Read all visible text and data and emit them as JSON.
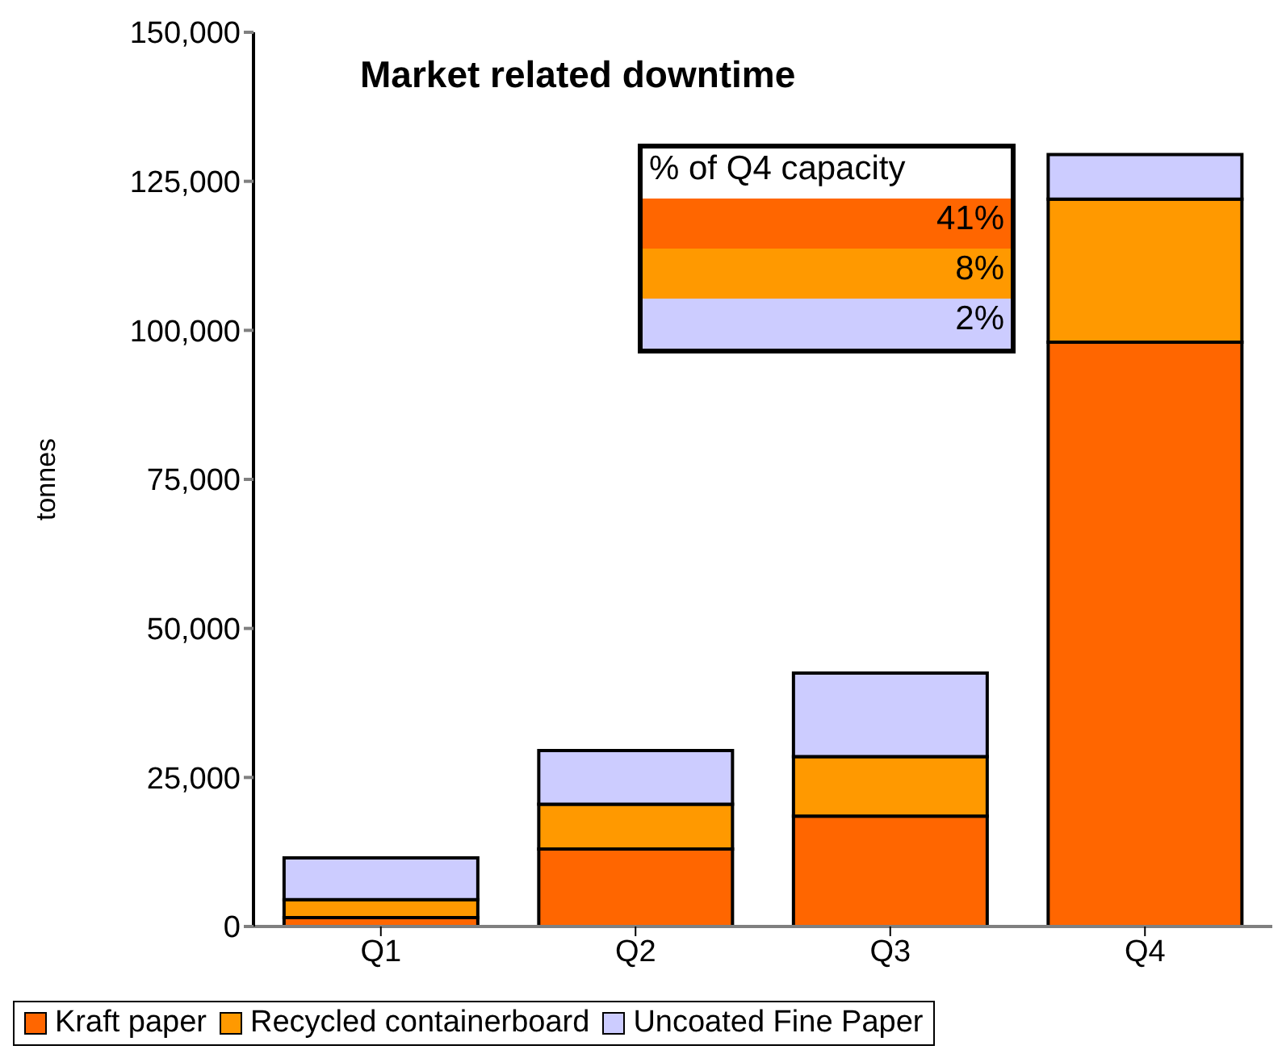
{
  "chart_data": {
    "type": "bar",
    "title": "Market related downtime",
    "ylabel": "tonnes",
    "categories": [
      "Q1",
      "Q2",
      "Q3",
      "Q4"
    ],
    "stacked": true,
    "series": [
      {
        "name": "Kraft paper",
        "color": "#ff6600",
        "values": [
          1500,
          13000,
          18500,
          98000
        ]
      },
      {
        "name": "Recycled containerboard",
        "color": "#ff9900",
        "values": [
          3000,
          7500,
          10000,
          24000
        ]
      },
      {
        "name": "Uncoated Fine Paper",
        "color": "#ccccff",
        "values": [
          7000,
          9000,
          14000,
          7500
        ]
      }
    ],
    "ylim": [
      0,
      150000
    ],
    "yticks": [
      {
        "value": 0,
        "label": "0"
      },
      {
        "value": 25000,
        "label": "25,000"
      },
      {
        "value": 50000,
        "label": "50,000"
      },
      {
        "value": 75000,
        "label": "75,000"
      },
      {
        "value": 100000,
        "label": "100,000"
      },
      {
        "value": 125000,
        "label": "125,000"
      },
      {
        "value": 150000,
        "label": "150,000"
      }
    ],
    "grid": false,
    "legend": "bottom",
    "annotations": [
      "% of Q4 capacity",
      "41%",
      "8%",
      "2%"
    ]
  }
}
